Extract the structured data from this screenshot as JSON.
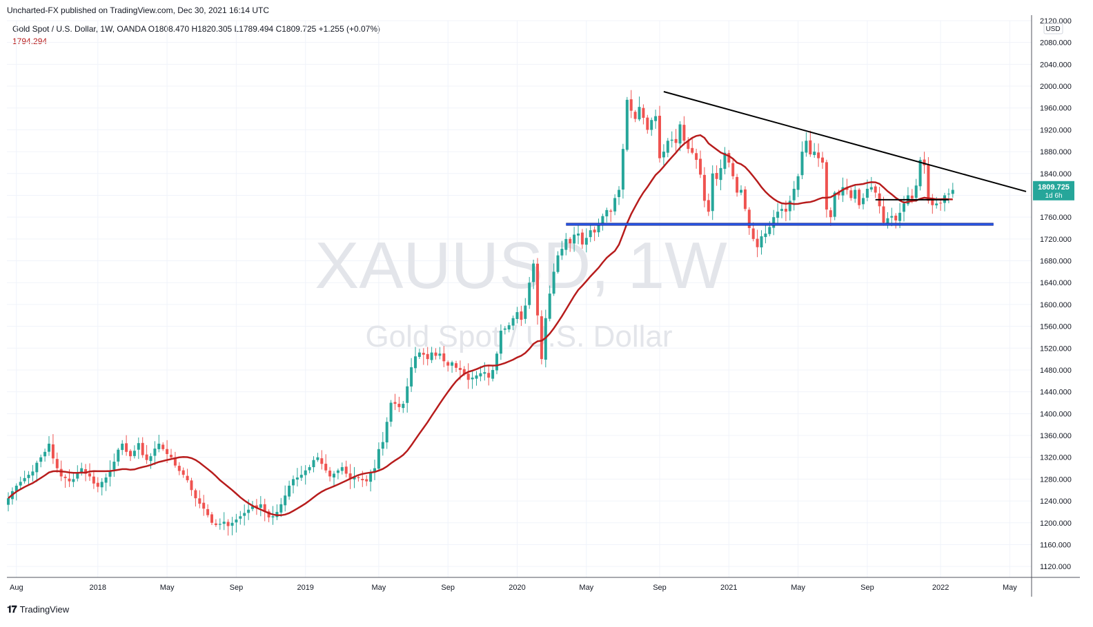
{
  "header": {
    "publisher": "Uncharted-FX published on TradingView.com, Dec 30, 2021 16:14 UTC",
    "legend": "Gold Spot / U.S. Dollar, 1W, OANDA  O1808.470  H1820.305  L1789.494  C1809.725  +1.255 (+0.07%)",
    "ma_value": "1794.294"
  },
  "watermark": {
    "symbol": "XAUUSD, 1W",
    "name": "Gold Spot / U.S. Dollar"
  },
  "footer": {
    "brand": "TradingView"
  },
  "colors": {
    "up": "#26a69a",
    "down": "#ef5350",
    "ma": "#b71c1c",
    "trendline": "#000000",
    "support": "#2962ff",
    "price_label_bg": "#26a69a"
  },
  "chart_data": {
    "type": "candlestick",
    "ylim": [
      1100,
      2120
    ],
    "currency": "USD",
    "current_price": "1809.725",
    "current_price_countdown": "1d 6h",
    "y_ticks": [
      1120,
      1160,
      1200,
      1240,
      1280,
      1320,
      1360,
      1400,
      1440,
      1480,
      1520,
      1560,
      1600,
      1640,
      1680,
      1720,
      1760,
      1800,
      1840,
      1880,
      1920,
      1960,
      2000,
      2040,
      2080,
      2120
    ],
    "x_ticks": [
      {
        "label": "Aug",
        "week": 2
      },
      {
        "label": "2018",
        "week": 22
      },
      {
        "label": "May",
        "week": 39
      },
      {
        "label": "Sep",
        "week": 56
      },
      {
        "label": "2019",
        "week": 73
      },
      {
        "label": "May",
        "week": 91
      },
      {
        "label": "Sep",
        "week": 108
      },
      {
        "label": "2020",
        "week": 125
      },
      {
        "label": "May",
        "week": 142
      },
      {
        "label": "Sep",
        "week": 160
      },
      {
        "label": "2021",
        "week": 177
      },
      {
        "label": "May",
        "week": 194
      },
      {
        "label": "Sep",
        "week": 211
      },
      {
        "label": "2022",
        "week": 229
      },
      {
        "label": "May",
        "week": 246
      }
    ],
    "closes": [
      1245,
      1258,
      1268,
      1275,
      1282,
      1288,
      1294,
      1310,
      1320,
      1330,
      1345,
      1318,
      1300,
      1285,
      1282,
      1276,
      1280,
      1292,
      1300,
      1290,
      1285,
      1272,
      1266,
      1275,
      1283,
      1296,
      1312,
      1334,
      1345,
      1330,
      1322,
      1332,
      1346,
      1324,
      1315,
      1322,
      1336,
      1345,
      1335,
      1326,
      1320,
      1305,
      1295,
      1288,
      1278,
      1260,
      1245,
      1235,
      1226,
      1214,
      1200,
      1196,
      1198,
      1202,
      1194,
      1200,
      1206,
      1212,
      1218,
      1224,
      1230,
      1228,
      1234,
      1220,
      1210,
      1212,
      1220,
      1234,
      1250,
      1268,
      1280,
      1283,
      1288,
      1296,
      1302,
      1315,
      1320,
      1308,
      1296,
      1285,
      1290,
      1296,
      1302,
      1290,
      1280,
      1284,
      1282,
      1278,
      1276,
      1292,
      1300,
      1335,
      1348,
      1385,
      1420,
      1418,
      1412,
      1418,
      1450,
      1485,
      1505,
      1512,
      1508,
      1500,
      1512,
      1506,
      1510,
      1496,
      1488,
      1494,
      1484,
      1480,
      1472,
      1462,
      1466,
      1470,
      1474,
      1476,
      1466,
      1480,
      1510,
      1552,
      1556,
      1562,
      1575,
      1586,
      1572,
      1598,
      1640,
      1675,
      1580,
      1500,
      1575,
      1620,
      1660,
      1690,
      1702,
      1720,
      1712,
      1728,
      1730,
      1710,
      1722,
      1736,
      1732,
      1745,
      1762,
      1773,
      1770,
      1795,
      1810,
      1885,
      1975,
      1955,
      1940,
      1962,
      1942,
      1920,
      1938,
      1945,
      1868,
      1880,
      1900,
      1902,
      1896,
      1930,
      1900,
      1885,
      1878,
      1865,
      1838,
      1790,
      1770,
      1840,
      1830,
      1850,
      1878,
      1860,
      1835,
      1805,
      1810,
      1775,
      1740,
      1720,
      1705,
      1725,
      1730,
      1742,
      1760,
      1770,
      1775,
      1770,
      1790,
      1812,
      1835,
      1880,
      1900,
      1875,
      1880,
      1868,
      1860,
      1774,
      1760,
      1805,
      1800,
      1815,
      1810,
      1795,
      1810,
      1782,
      1795,
      1812,
      1815,
      1805,
      1780,
      1750,
      1758,
      1762,
      1754,
      1768,
      1785,
      1800,
      1794,
      1818,
      1865,
      1855,
      1790,
      1782,
      1785,
      1786,
      1800,
      1803,
      1810
    ],
    "trendline": [
      {
        "label": "descending resistance",
        "week": 161,
        "price": 1990
      },
      {
        "label": "",
        "week": 250,
        "price": 1807
      }
    ],
    "support_line": {
      "price": 1747,
      "from_week": 137,
      "to_week": 242
    },
    "pivot_line": {
      "price": 1792,
      "from_week": 213,
      "to_week": 231
    },
    "ma_line": {
      "name": "MA",
      "period": 20
    }
  }
}
